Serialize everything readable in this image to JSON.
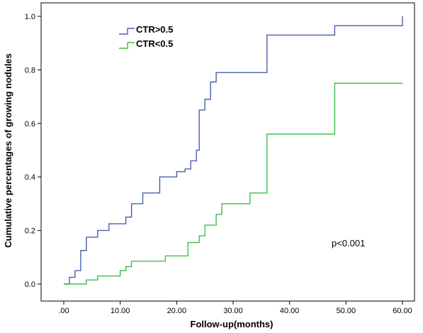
{
  "chart_data": {
    "type": "line",
    "step": true,
    "xlabel": "Follow-up(months)",
    "ylabel": "Cumulative percentages of growing nodules",
    "xlim": [
      0,
      60
    ],
    "ylim": [
      0,
      1.0
    ],
    "x_ticks": [
      0,
      10,
      20,
      30,
      40,
      50,
      60
    ],
    "x_tick_labels": [
      ".00",
      "10.00",
      "20.00",
      "30.00",
      "40.00",
      "50.00",
      "60.00"
    ],
    "y_ticks": [
      0,
      0.2,
      0.4,
      0.6,
      0.8,
      1.0
    ],
    "y_tick_labels": [
      "0.0",
      "0.2",
      "0.4",
      "0.6",
      "0.8",
      "1.0"
    ],
    "grid": false,
    "legend_position": "top-left",
    "annotation": "p<0.001",
    "series": [
      {
        "name": "CTR>0.5",
        "color": "#4a5fae",
        "points": [
          [
            0,
            0
          ],
          [
            1,
            0.025
          ],
          [
            2,
            0.05
          ],
          [
            3,
            0.125
          ],
          [
            4,
            0.175
          ],
          [
            6,
            0.2
          ],
          [
            8,
            0.225
          ],
          [
            11,
            0.25
          ],
          [
            12,
            0.3
          ],
          [
            14,
            0.34
          ],
          [
            17,
            0.4
          ],
          [
            20,
            0.42
          ],
          [
            21.5,
            0.43
          ],
          [
            22.5,
            0.46
          ],
          [
            23.5,
            0.5
          ],
          [
            24,
            0.65
          ],
          [
            25,
            0.69
          ],
          [
            26,
            0.755
          ],
          [
            27,
            0.79
          ],
          [
            36,
            0.93
          ],
          [
            48,
            0.965
          ],
          [
            60,
            1.0
          ]
        ]
      },
      {
        "name": "CTR<0.5",
        "color": "#3cbf4a",
        "points": [
          [
            0,
            0
          ],
          [
            4,
            0.015
          ],
          [
            6,
            0.03
          ],
          [
            10,
            0.05
          ],
          [
            11,
            0.065
          ],
          [
            12,
            0.085
          ],
          [
            18,
            0.105
          ],
          [
            22,
            0.155
          ],
          [
            24,
            0.18
          ],
          [
            25,
            0.22
          ],
          [
            27,
            0.26
          ],
          [
            28,
            0.3
          ],
          [
            33,
            0.34
          ],
          [
            36,
            0.56
          ],
          [
            48,
            0.75
          ],
          [
            60,
            0.75
          ]
        ]
      }
    ]
  }
}
